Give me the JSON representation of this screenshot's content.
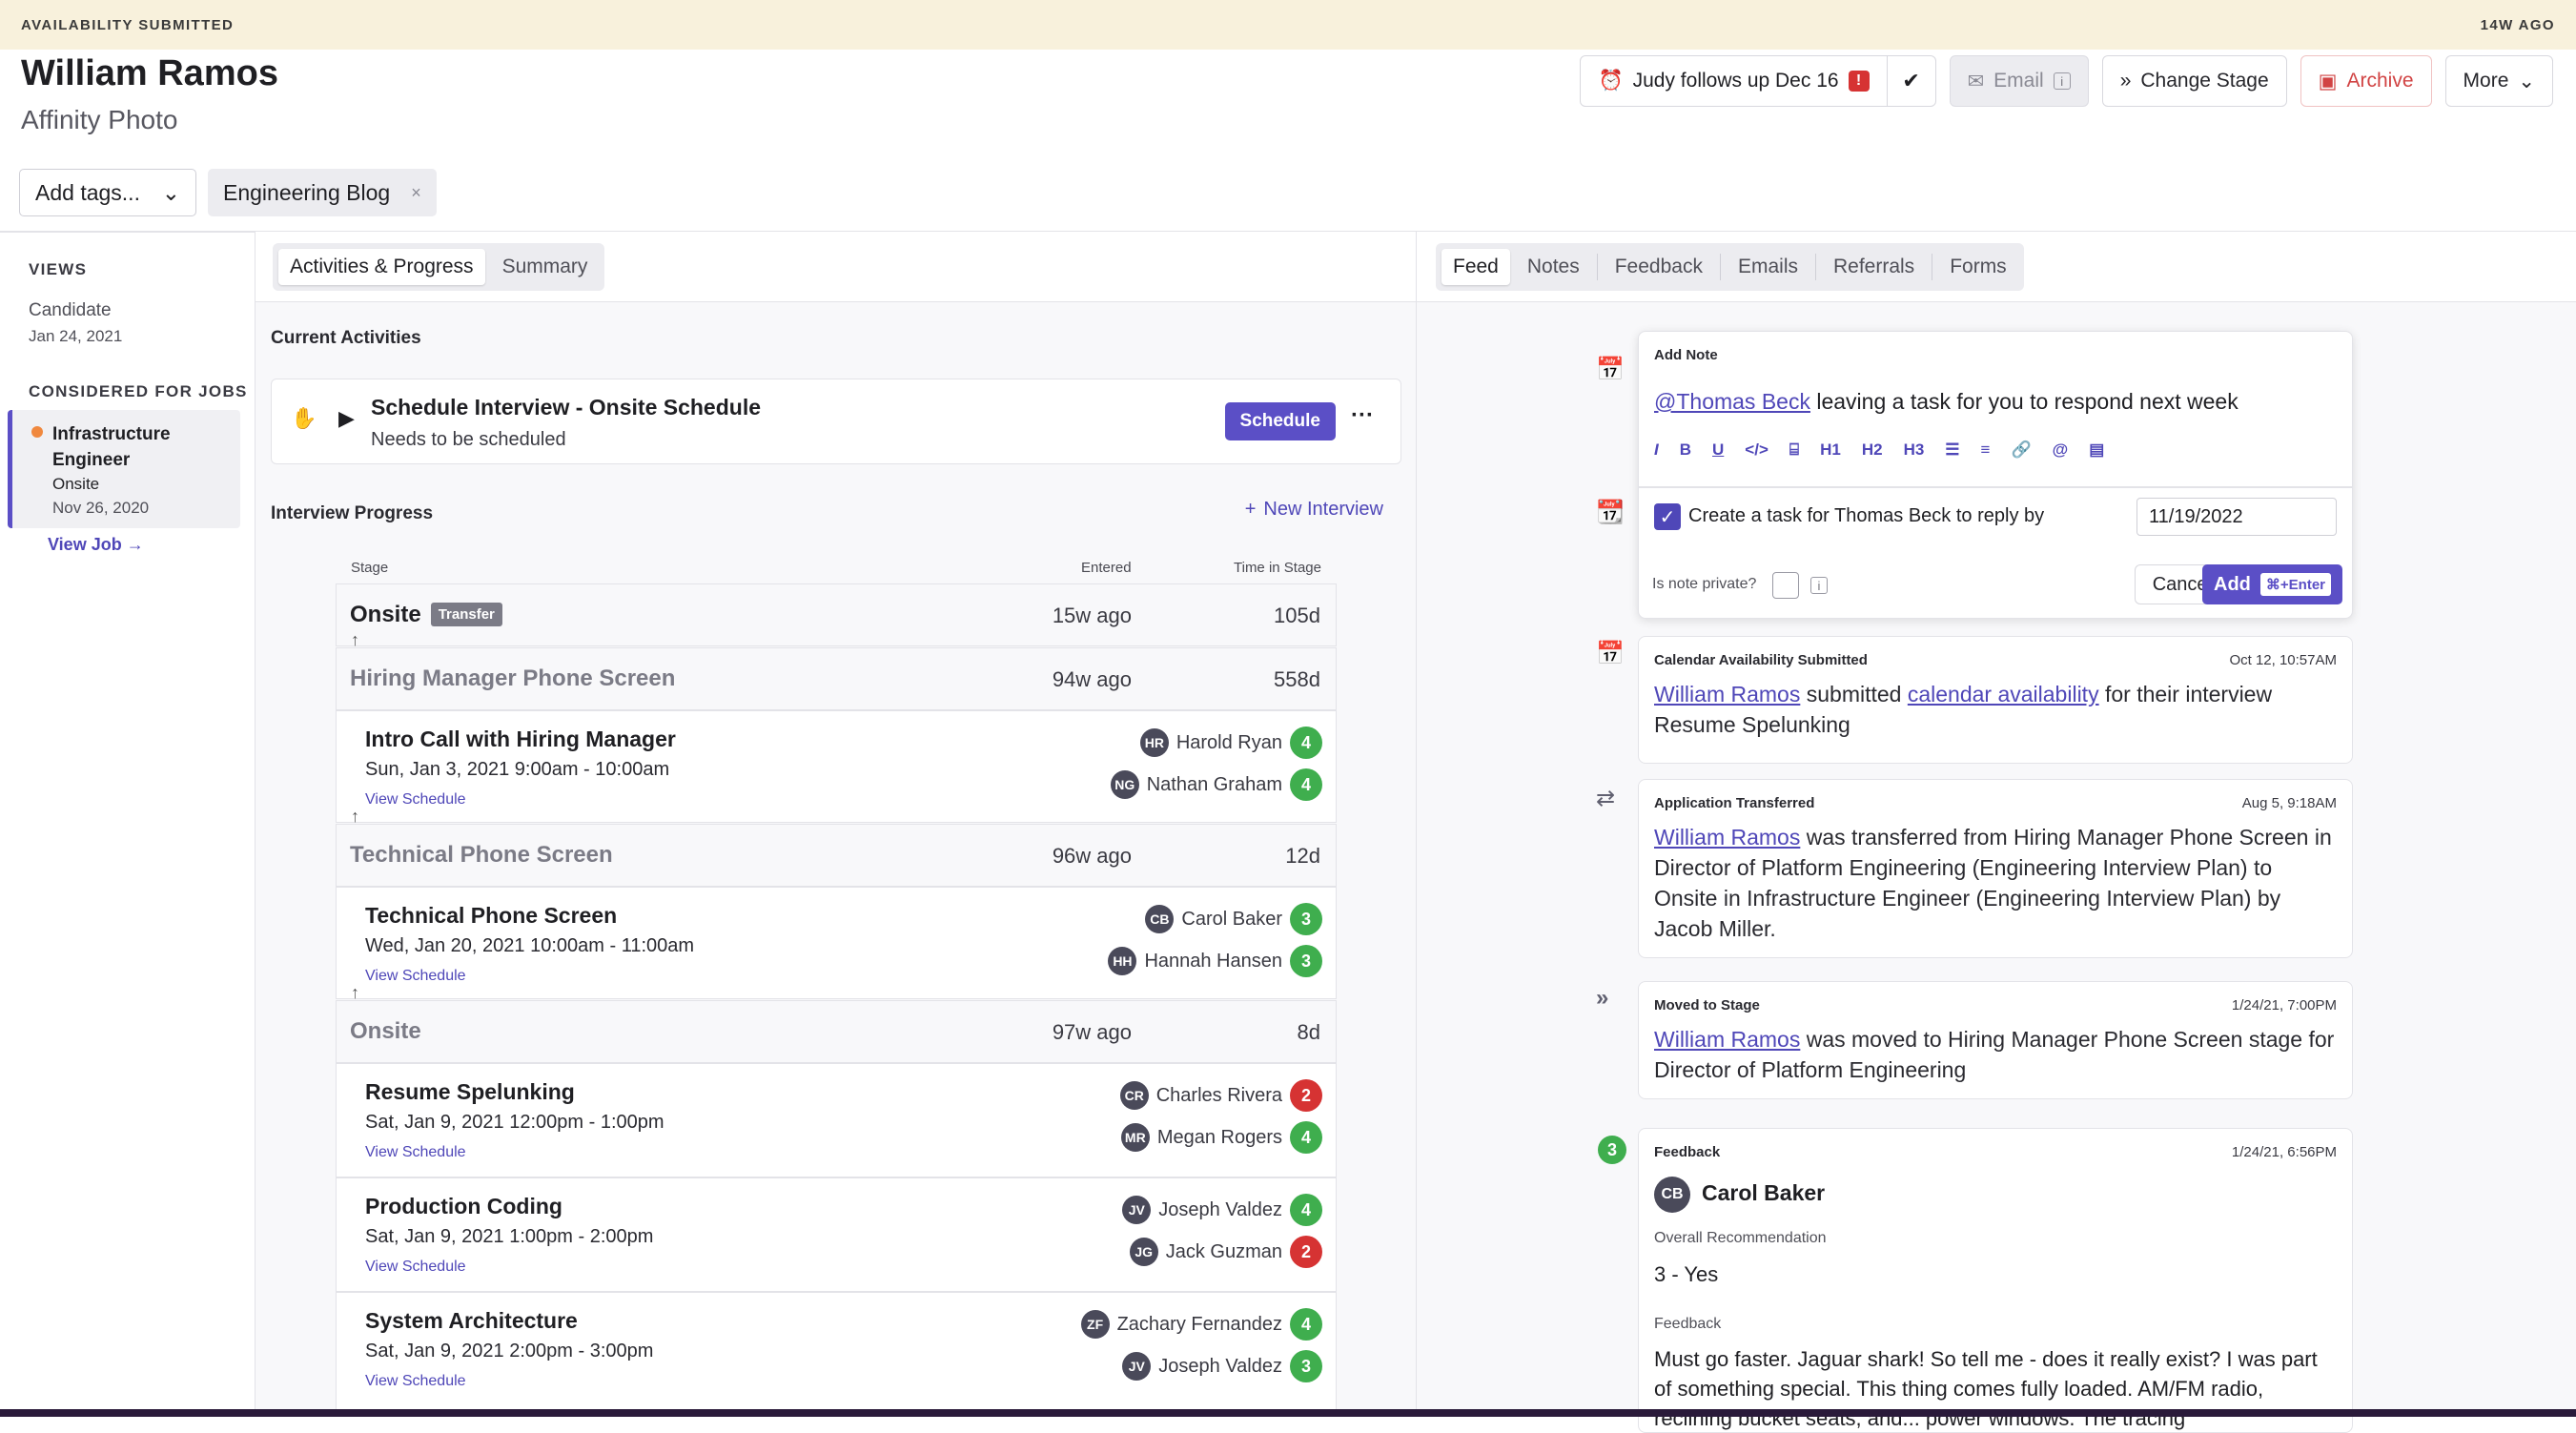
{
  "banner": {
    "left": "AVAILABILITY SUBMITTED",
    "right": "14W AGO"
  },
  "candidate": {
    "name": "William Ramos",
    "company": "Affinity Photo"
  },
  "actions": {
    "followup": "Judy follows up Dec 16",
    "alert": "!",
    "email": "Email",
    "email_info": "i",
    "change_stage": "Change Stage",
    "archive": "Archive",
    "more": "More"
  },
  "tags": {
    "placeholder": "Add tags...",
    "items": [
      "Engineering Blog"
    ],
    "remove": "×"
  },
  "sidebar": {
    "views_title": "VIEWS",
    "views": [
      {
        "label": "Candidate",
        "date": "Jan 24, 2021"
      }
    ],
    "jobs_title": "CONSIDERED FOR JOBS",
    "job": {
      "title": "Infrastructure Engineer",
      "stage": "Onsite",
      "date": "Nov 26, 2020",
      "status_color": "#f0883e"
    },
    "view_job": "View Job →"
  },
  "middle": {
    "tabs": [
      "Activities & Progress",
      "Summary"
    ],
    "current_title": "Current Activities",
    "activity": {
      "title": "Schedule Interview - Onsite Schedule",
      "sub": "Needs to be scheduled",
      "button": "Schedule",
      "more": "···"
    },
    "progress_title": "Interview Progress",
    "new_interview": "New Interview",
    "cols": {
      "stage": "Stage",
      "entered": "Entered",
      "time": "Time in Stage"
    },
    "stages": [
      {
        "name": "Onsite",
        "badge": "Transfer",
        "entered": "15w ago",
        "time": "105d"
      },
      {
        "name": "Hiring Manager Phone Screen",
        "entered": "94w ago",
        "time": "558d"
      },
      {
        "name": "Technical Phone Screen",
        "entered": "96w ago",
        "time": "12d"
      },
      {
        "name": "Onsite",
        "entered": "97w ago",
        "time": "8d"
      }
    ],
    "view_schedule": "View Schedule",
    "interviews": [
      {
        "title": "Intro Call with Hiring Manager",
        "date": "Sun, Jan 3, 2021 9:00am - 10:00am",
        "people": [
          {
            "ini": "HR",
            "name": "Harold Ryan",
            "score": "4"
          },
          {
            "ini": "NG",
            "name": "Nathan Graham",
            "score": "4"
          }
        ]
      },
      {
        "title": "Technical Phone Screen",
        "date": "Wed, Jan 20, 2021 10:00am - 11:00am",
        "people": [
          {
            "ini": "CB",
            "name": "Carol Baker",
            "score": "3"
          },
          {
            "ini": "HH",
            "name": "Hannah Hansen",
            "score": "3"
          }
        ]
      },
      {
        "title": "Resume Spelunking",
        "date": "Sat, Jan 9, 2021 12:00pm - 1:00pm",
        "people": [
          {
            "ini": "CR",
            "name": "Charles Rivera",
            "score": "2"
          },
          {
            "ini": "MR",
            "name": "Megan Rogers",
            "score": "4"
          }
        ]
      },
      {
        "title": "Production Coding",
        "date": "Sat, Jan 9, 2021 1:00pm - 2:00pm",
        "people": [
          {
            "ini": "JV",
            "name": "Joseph Valdez",
            "score": "4"
          },
          {
            "ini": "JG",
            "name": "Jack Guzman",
            "score": "2"
          }
        ]
      },
      {
        "title": "System Architecture",
        "date": "Sat, Jan 9, 2021 2:00pm - 3:00pm",
        "people": [
          {
            "ini": "ZF",
            "name": "Zachary Fernandez",
            "score": "4"
          },
          {
            "ini": "JV",
            "name": "Joseph Valdez",
            "score": "3"
          }
        ]
      }
    ]
  },
  "right": {
    "tabs": [
      "Feed",
      "Notes",
      "Feedback",
      "Emails",
      "Referrals",
      "Forms"
    ],
    "note": {
      "title": "Add Note",
      "mention": "@Thomas Beck",
      "text": " leaving a task for you to respond next week",
      "task_label": "Create a task for Thomas Beck to reply by",
      "task_date": "11/19/2022",
      "private_label": "Is note private?",
      "cancel": "Cancel",
      "add": "Add",
      "shortcut": "⌘+Enter"
    },
    "feed": [
      {
        "type": "Calendar Availability Submitted",
        "date": "Oct 12, 10:57AM",
        "link1": "William Ramos",
        "t1": " submitted ",
        "link2": "calendar availability",
        "t2": " for their interview",
        "b1": "Resume Spelunking"
      },
      {
        "type": "Application Transferred",
        "date": "Aug 5, 9:18AM",
        "link1": "William Ramos",
        "t1": " was transferred from ",
        "b1": "Hiring Manager Phone Screen",
        "t2": " in ",
        "b2": "Director of Platform Engineering (Engineering Interview Plan)",
        "t3": " to ",
        "b3": "Onsite",
        "t4": " in ",
        "b4": "Infrastructure Engineer (Engineering Interview Plan)",
        "t5": " by Jacob Miller."
      },
      {
        "type": "Moved to Stage",
        "date": "1/24/21, 7:00PM",
        "link1": "William Ramos",
        "t1": " was moved to ",
        "b1": "Hiring Manager Phone Screen",
        "t2": " stage for ",
        "b2": "Director of Platform Engineering"
      },
      {
        "type": "Feedback",
        "date": "1/24/21, 6:56PM",
        "score": "3",
        "ini": "CB",
        "name": "Carol Baker",
        "rec_label": "Overall Recommendation",
        "rec": "3 - Yes",
        "fb_label": "Feedback",
        "fb": "Must go faster. Jaguar shark! So tell me - does it really exist? I was part of something special. This thing comes fully loaded. AM/FM radio, reclining bucket seats, and... power windows. The tracing"
      }
    ]
  }
}
